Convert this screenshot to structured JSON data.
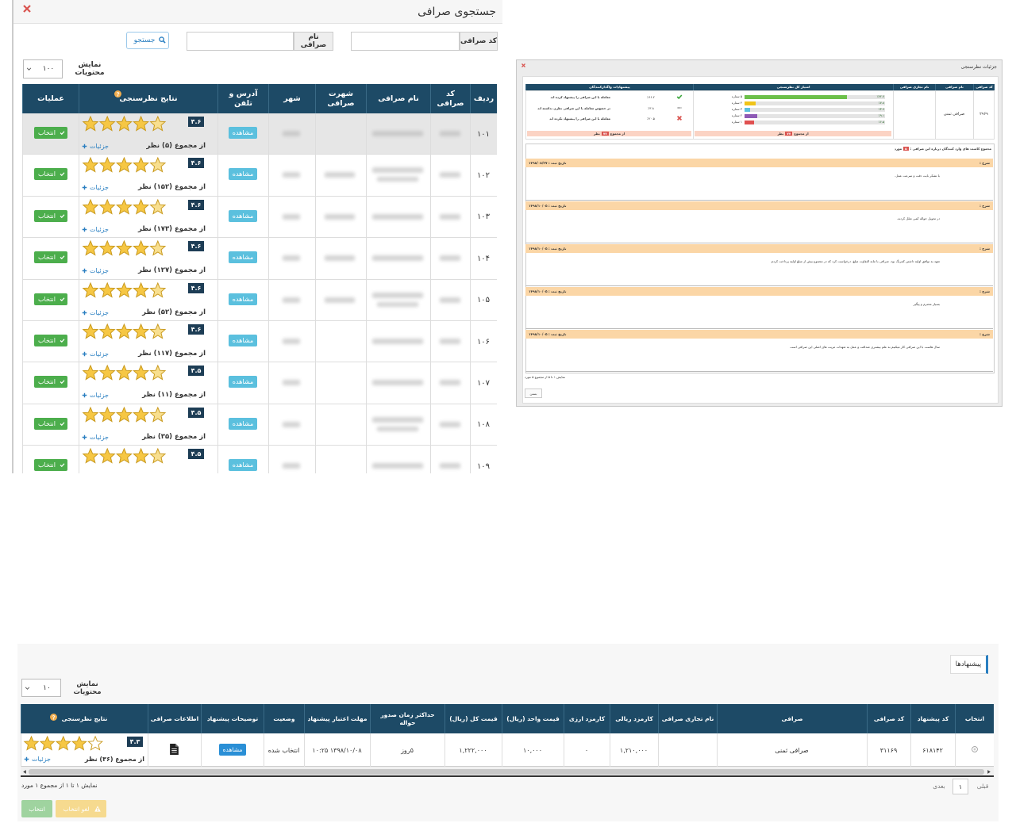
{
  "search_modal": {
    "title": "جستجوی صرافی",
    "code_label": "کد صرافی",
    "name_label": "نام صرافی",
    "search_button": "جستجو",
    "page_size_label": "نمایش محتویات",
    "page_size": "۱۰۰",
    "columns": [
      "ردیف",
      "کد صرافی",
      "نام صرافی",
      "شهرت صرافی",
      "شهر",
      "آدرس و تلفن",
      "نتایج نظرسنجی",
      "عملیات"
    ],
    "view_button": "مشاهده",
    "select_button": "انتخاب",
    "details_link": "جزئیات",
    "rows": [
      {
        "index": "۱۰۱",
        "rating": "۴.۶",
        "total": "از مجموع (۵) نظر"
      },
      {
        "index": "۱۰۲",
        "rating": "۴.۶",
        "total": "از مجموع (۱۵۲) نظر"
      },
      {
        "index": "۱۰۳",
        "rating": "۴.۶",
        "total": "از مجموع (۱۷۳) نظر"
      },
      {
        "index": "۱۰۴",
        "rating": "۴.۶",
        "total": "از مجموع (۱۲۷) نظر"
      },
      {
        "index": "۱۰۵",
        "rating": "۴.۶",
        "total": "از مجموع (۵۲) نظر"
      },
      {
        "index": "۱۰۶",
        "rating": "۴.۶",
        "total": "از مجموع (۱۱۷) نظر"
      },
      {
        "index": "۱۰۷",
        "rating": "۴.۵",
        "total": "از مجموع (۱۱) نظر"
      },
      {
        "index": "۱۰۸",
        "rating": "۴.۵",
        "total": "از مجموع (۳۵) نظر"
      },
      {
        "index": "۱۰۹",
        "rating": "۴.۵"
      }
    ]
  },
  "details_modal": {
    "title": "جزئیات نظرسنجی",
    "columns": [
      "کد صرافی",
      "نام صرافی",
      "نام تجاری صرافی",
      "امتیاز کل نظرسنجی",
      "پیشنهادات واگذارکنندگان"
    ],
    "code": "۲۹۶۹",
    "name": "صرافی ثمنی",
    "star_rows": [
      {
        "label": "۵ ستاره",
        "value": 72.7,
        "value_label": "٪۷۲.۷",
        "color": "#6cc04a"
      },
      {
        "label": "۴ ستاره",
        "value": 7.8,
        "value_label": "٪۷.۸",
        "color": "#f0c419"
      },
      {
        "label": "۳ ستاره",
        "value": 3.9,
        "value_label": "٪۳.۹",
        "color": "#5bc0de"
      },
      {
        "label": "۲ ستاره",
        "value": 9.1,
        "value_label": "٪۹.۱",
        "color": "#8e5ab5"
      },
      {
        "label": "۱ ستاره",
        "value": 6.5,
        "value_label": "٪۶.۵",
        "color": "#e05050"
      }
    ],
    "recommendations": [
      {
        "text": "معامله با این صرافی را پیشنهاد کرده اند",
        "percent": "٪۶۶.۲"
      },
      {
        "text": "در خصوص معامله با این صرافی نظری نداشته اند",
        "percent": "٪۳.۸"
      },
      {
        "text": "معامله با این صرافی را پیشنهاد نکرده اند",
        "percent": "٪۲۰.۵"
      }
    ],
    "total_prefix": "از مجموع",
    "total_count": "۷۷",
    "total_suffix": "نظر",
    "comments_label": "مجموع کامنت های وارد کنندگان درباره این صرافی :",
    "comments_count": "۵",
    "comments_unit": "مورد",
    "desc_label": "شرح :",
    "comments": [
      {
        "date": "تاریخ ثبت : ۱۳۹۸/۰۸/۲۷",
        "text": "با تشکر بابت دقت و سرعت عمل."
      },
      {
        "date": "تاریخ ثبت : ۱۳۹۸/۱۰/۰۵",
        "text": "در تحویل حواله کمی تعلل کردند."
      },
      {
        "date": "تاریخ ثبت : ۱۳۹۸/۱۰/۰۵",
        "text": "تعهد به توافق اولیه داشتن کمرنگ بود. صرافی با مابه التفاوت مبلغ، درخواست کرد که در مجموع بیش از مبلغ اولیه پرداخت کردم"
      },
      {
        "date": "تاریخ ثبت : ۱۳۹۸/۱۰/۰۵",
        "text": "بسیار محترم و پیگیر"
      },
      {
        "date": "تاریخ ثبت : ۱۳۹۸/۱۰/۰۵",
        "text": "سال هاست با این صرافی کار میکنیم به علم بیشتری صداقت و عمل به تعهدات مزیت های اصلی این صرافی است"
      }
    ],
    "footer": "نمایش ۱ تا ۵ از مجموع ۵ مورد",
    "close_button": "بستن"
  },
  "offers_panel": {
    "tab": "پیشنهادها",
    "page_size_label": "نمایش محتویات",
    "page_size": "۱۰",
    "columns": [
      "انتخاب",
      "کد پیشنهاد",
      "کد صرافی",
      "صرافی",
      "نام تجاری صرافی",
      "کارمزد ریالی",
      "کارمزد ارزی",
      "قیمت واحد (ریال)",
      "قیمت کل (ریال)",
      "حداکثر زمان صدور حواله",
      "مهلت اعتبار پیشنهاد",
      "وضعیت",
      "توضیحات پیشنهاد",
      "اطلاعات صرافی",
      "نتایج نظرسنجی"
    ],
    "row": {
      "offer_code": "۶۱۸۱۴۲",
      "exchange_code": "۳۱۱۶۹",
      "exchange": "صرافی ثمنی",
      "rial_fee": "۱,۲۱۰,۰۰۰",
      "fx_fee": "۰",
      "unit_price": "۱۰,۰۰۰",
      "total_price": "۱,۲۲۲,۰۰۰",
      "max_time": "۵روز",
      "deadline": "۱۳۹۸/۱۰/۰۸ ۱۰:۲۵",
      "status": "انتخاب شده",
      "view": "مشاهده",
      "rating": "۴.۳",
      "total": "از مجموع (۳۶) نظر",
      "details": "جزئیات"
    },
    "footer": "نمایش ۱ تا ۱ از مجموع ۱ مورد",
    "prev": "قبلی",
    "page": "۱",
    "next": "بعدی",
    "cancel_button": "لغو انتخاب",
    "select_button": "انتخاب"
  }
}
